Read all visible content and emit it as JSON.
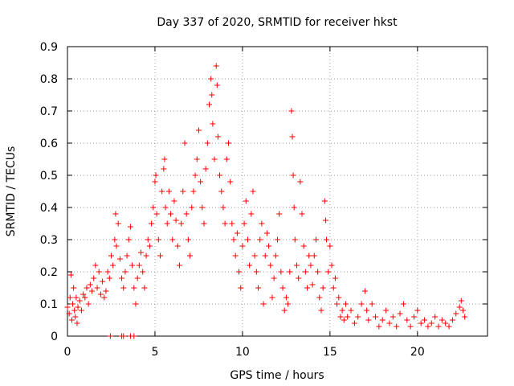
{
  "chart_data": {
    "type": "scatter",
    "title": "Day 337 of 2020, SRMTID for receiver hkst",
    "xlabel": "GPS time / hours",
    "ylabel": "SRMTID / TECUs",
    "xlim": [
      0,
      24
    ],
    "ylim": [
      0,
      0.9
    ],
    "xticks": [
      0,
      5,
      10,
      15,
      20
    ],
    "xtick_labels": [
      "0",
      "5",
      "10",
      "15",
      "20"
    ],
    "yticks": [
      0,
      0.1,
      0.2,
      0.3,
      0.4,
      0.5,
      0.6,
      0.7,
      0.8,
      0.9
    ],
    "ytick_labels": [
      "0",
      "0.1",
      "0.2",
      "0.3",
      "0.4",
      "0.5",
      "0.6",
      "0.7",
      "0.8",
      "0.9"
    ],
    "grid": true,
    "legend": "none",
    "marker": "plus",
    "series": [
      {
        "name": "SRMTID",
        "color": "#ff0000",
        "points": [
          [
            0.0,
            0.09
          ],
          [
            0.1,
            0.07
          ],
          [
            0.15,
            0.12
          ],
          [
            0.2,
            0.19
          ],
          [
            0.25,
            0.05
          ],
          [
            0.3,
            0.1
          ],
          [
            0.35,
            0.15
          ],
          [
            0.4,
            0.08
          ],
          [
            0.45,
            0.06
          ],
          [
            0.5,
            0.12
          ],
          [
            0.55,
            0.04
          ],
          [
            0.6,
            0.09
          ],
          [
            0.7,
            0.11
          ],
          [
            0.8,
            0.08
          ],
          [
            0.9,
            0.13
          ],
          [
            1.0,
            0.12
          ],
          [
            1.1,
            0.15
          ],
          [
            1.2,
            0.1
          ],
          [
            1.3,
            0.16
          ],
          [
            1.4,
            0.14
          ],
          [
            1.5,
            0.18
          ],
          [
            1.6,
            0.22
          ],
          [
            1.7,
            0.15
          ],
          [
            1.8,
            0.2
          ],
          [
            1.9,
            0.13
          ],
          [
            2.0,
            0.17
          ],
          [
            2.1,
            0.12
          ],
          [
            2.2,
            0.14
          ],
          [
            2.3,
            0.2
          ],
          [
            2.4,
            0.18
          ],
          [
            2.5,
            0.25
          ],
          [
            2.6,
            0.22
          ],
          [
            2.7,
            0.3
          ],
          [
            2.75,
            0.38
          ],
          [
            2.8,
            0.28
          ],
          [
            2.9,
            0.35
          ],
          [
            3.0,
            0.24
          ],
          [
            3.1,
            0.18
          ],
          [
            3.2,
            0.15
          ],
          [
            3.3,
            0.2
          ],
          [
            3.4,
            0.25
          ],
          [
            3.5,
            0.3
          ],
          [
            3.6,
            0.34
          ],
          [
            3.7,
            0.22
          ],
          [
            3.8,
            0.15
          ],
          [
            3.9,
            0.1
          ],
          [
            4.0,
            0.18
          ],
          [
            4.1,
            0.22
          ],
          [
            4.2,
            0.26
          ],
          [
            4.3,
            0.2
          ],
          [
            4.4,
            0.15
          ],
          [
            4.5,
            0.25
          ],
          [
            4.6,
            0.3
          ],
          [
            4.7,
            0.28
          ],
          [
            4.8,
            0.35
          ],
          [
            4.9,
            0.4
          ],
          [
            5.0,
            0.48
          ],
          [
            5.05,
            0.5
          ],
          [
            5.1,
            0.38
          ],
          [
            5.2,
            0.3
          ],
          [
            5.3,
            0.25
          ],
          [
            5.4,
            0.45
          ],
          [
            5.5,
            0.52
          ],
          [
            5.55,
            0.55
          ],
          [
            5.6,
            0.4
          ],
          [
            5.7,
            0.35
          ],
          [
            5.8,
            0.45
          ],
          [
            5.9,
            0.38
          ],
          [
            6.0,
            0.3
          ],
          [
            6.1,
            0.42
          ],
          [
            6.2,
            0.36
          ],
          [
            6.3,
            0.28
          ],
          [
            6.4,
            0.22
          ],
          [
            6.5,
            0.35
          ],
          [
            6.6,
            0.45
          ],
          [
            6.7,
            0.6
          ],
          [
            6.8,
            0.38
          ],
          [
            6.9,
            0.3
          ],
          [
            7.0,
            0.25
          ],
          [
            7.1,
            0.4
          ],
          [
            7.2,
            0.45
          ],
          [
            7.3,
            0.5
          ],
          [
            7.4,
            0.55
          ],
          [
            7.5,
            0.64
          ],
          [
            7.6,
            0.48
          ],
          [
            7.7,
            0.4
          ],
          [
            7.8,
            0.35
          ],
          [
            7.9,
            0.52
          ],
          [
            8.0,
            0.6
          ],
          [
            8.1,
            0.72
          ],
          [
            8.2,
            0.8
          ],
          [
            8.25,
            0.75
          ],
          [
            8.3,
            0.66
          ],
          [
            8.4,
            0.55
          ],
          [
            8.5,
            0.84
          ],
          [
            8.55,
            0.78
          ],
          [
            8.6,
            0.62
          ],
          [
            8.7,
            0.5
          ],
          [
            8.8,
            0.45
          ],
          [
            8.9,
            0.4
          ],
          [
            9.0,
            0.35
          ],
          [
            9.1,
            0.55
          ],
          [
            9.2,
            0.6
          ],
          [
            9.3,
            0.48
          ],
          [
            9.4,
            0.35
          ],
          [
            9.5,
            0.3
          ],
          [
            9.6,
            0.25
          ],
          [
            9.7,
            0.32
          ],
          [
            9.8,
            0.2
          ],
          [
            9.9,
            0.15
          ],
          [
            10.0,
            0.28
          ],
          [
            10.1,
            0.35
          ],
          [
            10.2,
            0.42
          ],
          [
            10.3,
            0.3
          ],
          [
            10.4,
            0.22
          ],
          [
            10.5,
            0.38
          ],
          [
            10.6,
            0.45
          ],
          [
            10.7,
            0.25
          ],
          [
            10.8,
            0.2
          ],
          [
            10.9,
            0.15
          ],
          [
            11.0,
            0.3
          ],
          [
            11.1,
            0.35
          ],
          [
            11.2,
            0.1
          ],
          [
            11.3,
            0.25
          ],
          [
            11.4,
            0.32
          ],
          [
            11.5,
            0.28
          ],
          [
            11.6,
            0.22
          ],
          [
            11.7,
            0.12
          ],
          [
            11.8,
            0.18
          ],
          [
            11.9,
            0.25
          ],
          [
            12.0,
            0.3
          ],
          [
            12.1,
            0.38
          ],
          [
            12.2,
            0.2
          ],
          [
            12.3,
            0.15
          ],
          [
            12.4,
            0.08
          ],
          [
            12.5,
            0.12
          ],
          [
            12.6,
            0.1
          ],
          [
            12.7,
            0.2
          ],
          [
            12.8,
            0.7
          ],
          [
            12.85,
            0.62
          ],
          [
            12.9,
            0.5
          ],
          [
            12.95,
            0.4
          ],
          [
            13.0,
            0.3
          ],
          [
            13.1,
            0.22
          ],
          [
            13.2,
            0.18
          ],
          [
            13.3,
            0.48
          ],
          [
            13.4,
            0.38
          ],
          [
            13.5,
            0.28
          ],
          [
            13.6,
            0.2
          ],
          [
            13.7,
            0.15
          ],
          [
            13.8,
            0.25
          ],
          [
            13.9,
            0.22
          ],
          [
            14.0,
            0.16
          ],
          [
            14.1,
            0.25
          ],
          [
            14.2,
            0.3
          ],
          [
            14.3,
            0.2
          ],
          [
            14.4,
            0.12
          ],
          [
            14.5,
            0.08
          ],
          [
            14.6,
            0.15
          ],
          [
            14.7,
            0.42
          ],
          [
            14.75,
            0.36
          ],
          [
            14.8,
            0.3
          ],
          [
            14.9,
            0.2
          ],
          [
            15.0,
            0.28
          ],
          [
            15.1,
            0.22
          ],
          [
            15.2,
            0.15
          ],
          [
            15.3,
            0.18
          ],
          [
            15.4,
            0.1
          ],
          [
            15.5,
            0.12
          ],
          [
            15.6,
            0.06
          ],
          [
            15.7,
            0.08
          ],
          [
            15.8,
            0.05
          ],
          [
            15.9,
            0.1
          ],
          [
            16.0,
            0.06
          ],
          [
            16.2,
            0.08
          ],
          [
            16.4,
            0.04
          ],
          [
            16.6,
            0.06
          ],
          [
            16.8,
            0.1
          ],
          [
            17.0,
            0.14
          ],
          [
            17.1,
            0.08
          ],
          [
            17.2,
            0.05
          ],
          [
            17.4,
            0.1
          ],
          [
            17.6,
            0.06
          ],
          [
            17.8,
            0.03
          ],
          [
            18.0,
            0.05
          ],
          [
            18.2,
            0.08
          ],
          [
            18.4,
            0.04
          ],
          [
            18.6,
            0.06
          ],
          [
            18.8,
            0.03
          ],
          [
            19.0,
            0.07
          ],
          [
            19.2,
            0.1
          ],
          [
            19.4,
            0.05
          ],
          [
            19.6,
            0.03
          ],
          [
            19.8,
            0.06
          ],
          [
            20.0,
            0.08
          ],
          [
            20.2,
            0.04
          ],
          [
            20.4,
            0.05
          ],
          [
            20.6,
            0.03
          ],
          [
            20.8,
            0.04
          ],
          [
            21.0,
            0.06
          ],
          [
            21.2,
            0.03
          ],
          [
            21.4,
            0.05
          ],
          [
            21.6,
            0.04
          ],
          [
            21.8,
            0.03
          ],
          [
            22.0,
            0.05
          ],
          [
            22.2,
            0.07
          ],
          [
            22.4,
            0.09
          ],
          [
            22.5,
            0.11
          ],
          [
            22.6,
            0.08
          ],
          [
            22.7,
            0.06
          ],
          [
            2.45,
            0.0
          ],
          [
            3.1,
            0.0
          ],
          [
            3.2,
            0.0
          ],
          [
            3.6,
            0.0
          ],
          [
            3.8,
            0.0
          ]
        ]
      }
    ]
  }
}
